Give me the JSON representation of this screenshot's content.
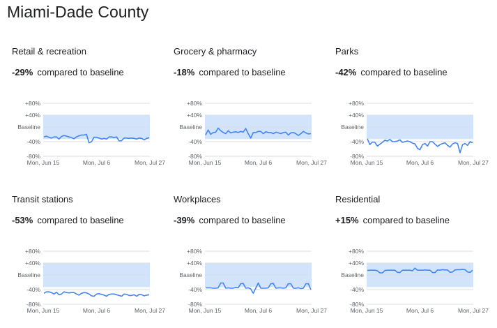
{
  "header": {
    "title": "Miami-Dade County"
  },
  "colors": {
    "band": "#d2e3fc",
    "line": "#4285f4",
    "grid": "#dadce0",
    "text": "#5f6368"
  },
  "chart_data": [
    {
      "type": "line",
      "title": "Retail & recreation",
      "stat": {
        "percent": "-29%",
        "suffix": "compared to baseline"
      },
      "ylim": [
        -80,
        80
      ],
      "yticks": [
        "+80%",
        "+40%",
        "Baseline",
        "-40%",
        "-80%"
      ],
      "xticks": [
        "Mon, Jun 15",
        "Mon, Jul 6",
        "Mon, Jul 27"
      ],
      "band": [
        -33,
        40
      ],
      "x_range": [
        "Jun 15",
        "Jul 27"
      ],
      "values": [
        -27,
        -25,
        -28,
        -30,
        -27,
        -27,
        -33,
        -26,
        -23,
        -25,
        -27,
        -29,
        -32,
        -27,
        -24,
        -22,
        -22,
        -20,
        -43,
        -40,
        -28,
        -28,
        -30,
        -33,
        -31,
        -33,
        -27,
        -27,
        -29,
        -27,
        -38,
        -37,
        -30,
        -30,
        -31,
        -30,
        -31,
        -33,
        -30,
        -31,
        -35,
        -31,
        -29
      ]
    },
    {
      "type": "line",
      "title": "Grocery & pharmacy",
      "stat": {
        "percent": "-18%",
        "suffix": "compared to baseline"
      },
      "ylim": [
        -80,
        80
      ],
      "yticks": [
        "+80%",
        "+40%",
        "Baseline",
        "-40%",
        "-80%"
      ],
      "xticks": [
        "Mon, Jun 15",
        "Mon, Jul 6",
        "Mon, Jul 27"
      ],
      "band": [
        -33,
        40
      ],
      "x_range": [
        "Jun 15",
        "Jul 27"
      ],
      "values": [
        -22,
        -8,
        -20,
        -15,
        -14,
        -3,
        -10,
        -15,
        -18,
        -10,
        -16,
        -14,
        -13,
        -15,
        -12,
        -14,
        -4,
        -18,
        -30,
        -15,
        -15,
        -12,
        -12,
        -18,
        -13,
        -15,
        -15,
        -18,
        -14,
        -16,
        -18,
        -15,
        -14,
        -22,
        -16,
        -15,
        -18,
        -23,
        -18,
        -12,
        -16,
        -19,
        -18
      ]
    },
    {
      "type": "line",
      "title": "Parks",
      "stat": {
        "percent": "-42%",
        "suffix": "compared to baseline"
      },
      "ylim": [
        -80,
        80
      ],
      "yticks": [
        "+80%",
        "+40%",
        "Baseline",
        "-40%",
        "-80%"
      ],
      "xticks": [
        "Mon, Jun 15",
        "Mon, Jul 6",
        "Mon, Jul 27"
      ],
      "band": [
        -33,
        40
      ],
      "x_range": [
        "Jun 15",
        "Jul 27"
      ],
      "values": [
        -32,
        -48,
        -41,
        -42,
        -52,
        -47,
        -42,
        -36,
        -38,
        -34,
        -40,
        -40,
        -38,
        -35,
        -42,
        -40,
        -38,
        -40,
        -44,
        -46,
        -58,
        -62,
        -48,
        -45,
        -52,
        -40,
        -40,
        -47,
        -53,
        -48,
        -45,
        -43,
        -50,
        -55,
        -46,
        -43,
        -45,
        -70,
        -48,
        -45,
        -50,
        -40,
        -43
      ]
    },
    {
      "type": "line",
      "title": "Transit stations",
      "stat": {
        "percent": "-53%",
        "suffix": "compared to baseline"
      },
      "ylim": [
        -80,
        80
      ],
      "yticks": [
        "+80%",
        "+40%",
        "Baseline",
        "-40%",
        "-80%"
      ],
      "xticks": [
        "Mon, Jun 15",
        "Mon, Jul 6",
        "Mon, Jul 27"
      ],
      "band": [
        -33,
        40
      ],
      "x_range": [
        "Jun 15",
        "Jul 27"
      ],
      "values": [
        -50,
        -46,
        -46,
        -48,
        -52,
        -47,
        -54,
        -52,
        -46,
        -48,
        -49,
        -48,
        -48,
        -52,
        -55,
        -50,
        -48,
        -49,
        -52,
        -57,
        -58,
        -52,
        -51,
        -53,
        -55,
        -58,
        -53,
        -52,
        -52,
        -54,
        -56,
        -58,
        -52,
        -53,
        -56,
        -56,
        -54,
        -58,
        -53,
        -54,
        -57,
        -55,
        -54
      ]
    },
    {
      "type": "line",
      "title": "Workplaces",
      "stat": {
        "percent": "-39%",
        "suffix": "compared to baseline"
      },
      "ylim": [
        -80,
        80
      ],
      "yticks": [
        "+80%",
        "+40%",
        "Baseline",
        "-40%",
        "-80%"
      ],
      "xticks": [
        "Mon, Jun 15",
        "Mon, Jul 6",
        "Mon, Jul 27"
      ],
      "band": [
        -33,
        40
      ],
      "x_range": [
        "Jun 15",
        "Jul 27"
      ],
      "values": [
        -35,
        -35,
        -35,
        -36,
        -36,
        -35,
        -22,
        -22,
        -36,
        -35,
        -36,
        -36,
        -34,
        -35,
        -24,
        -23,
        -36,
        -35,
        -38,
        -50,
        -36,
        -22,
        -36,
        -36,
        -36,
        -35,
        -24,
        -23,
        -36,
        -35,
        -35,
        -36,
        -35,
        -24,
        -24,
        -36,
        -36,
        -35,
        -37,
        -36,
        -24,
        -24,
        -40
      ]
    },
    {
      "type": "line",
      "title": "Residential",
      "stat": {
        "percent": "+15%",
        "suffix": "compared to baseline"
      },
      "ylim": [
        -80,
        80
      ],
      "yticks": [
        "+80%",
        "+40%",
        "Baseline",
        "-40%",
        "-80%"
      ],
      "xticks": [
        "Mon, Jun 15",
        "Mon, Jul 6",
        "Mon, Jul 27"
      ],
      "band": [
        -33,
        40
      ],
      "x_range": [
        "Jun 15",
        "Jul 27"
      ],
      "values": [
        15,
        16,
        16,
        16,
        14,
        7,
        7,
        15,
        16,
        16,
        16,
        16,
        9,
        8,
        16,
        16,
        16,
        16,
        14,
        23,
        16,
        16,
        16,
        17,
        16,
        16,
        8,
        8,
        17,
        16,
        18,
        17,
        17,
        9,
        10,
        17,
        18,
        18,
        19,
        18,
        10,
        9,
        16
      ]
    }
  ]
}
